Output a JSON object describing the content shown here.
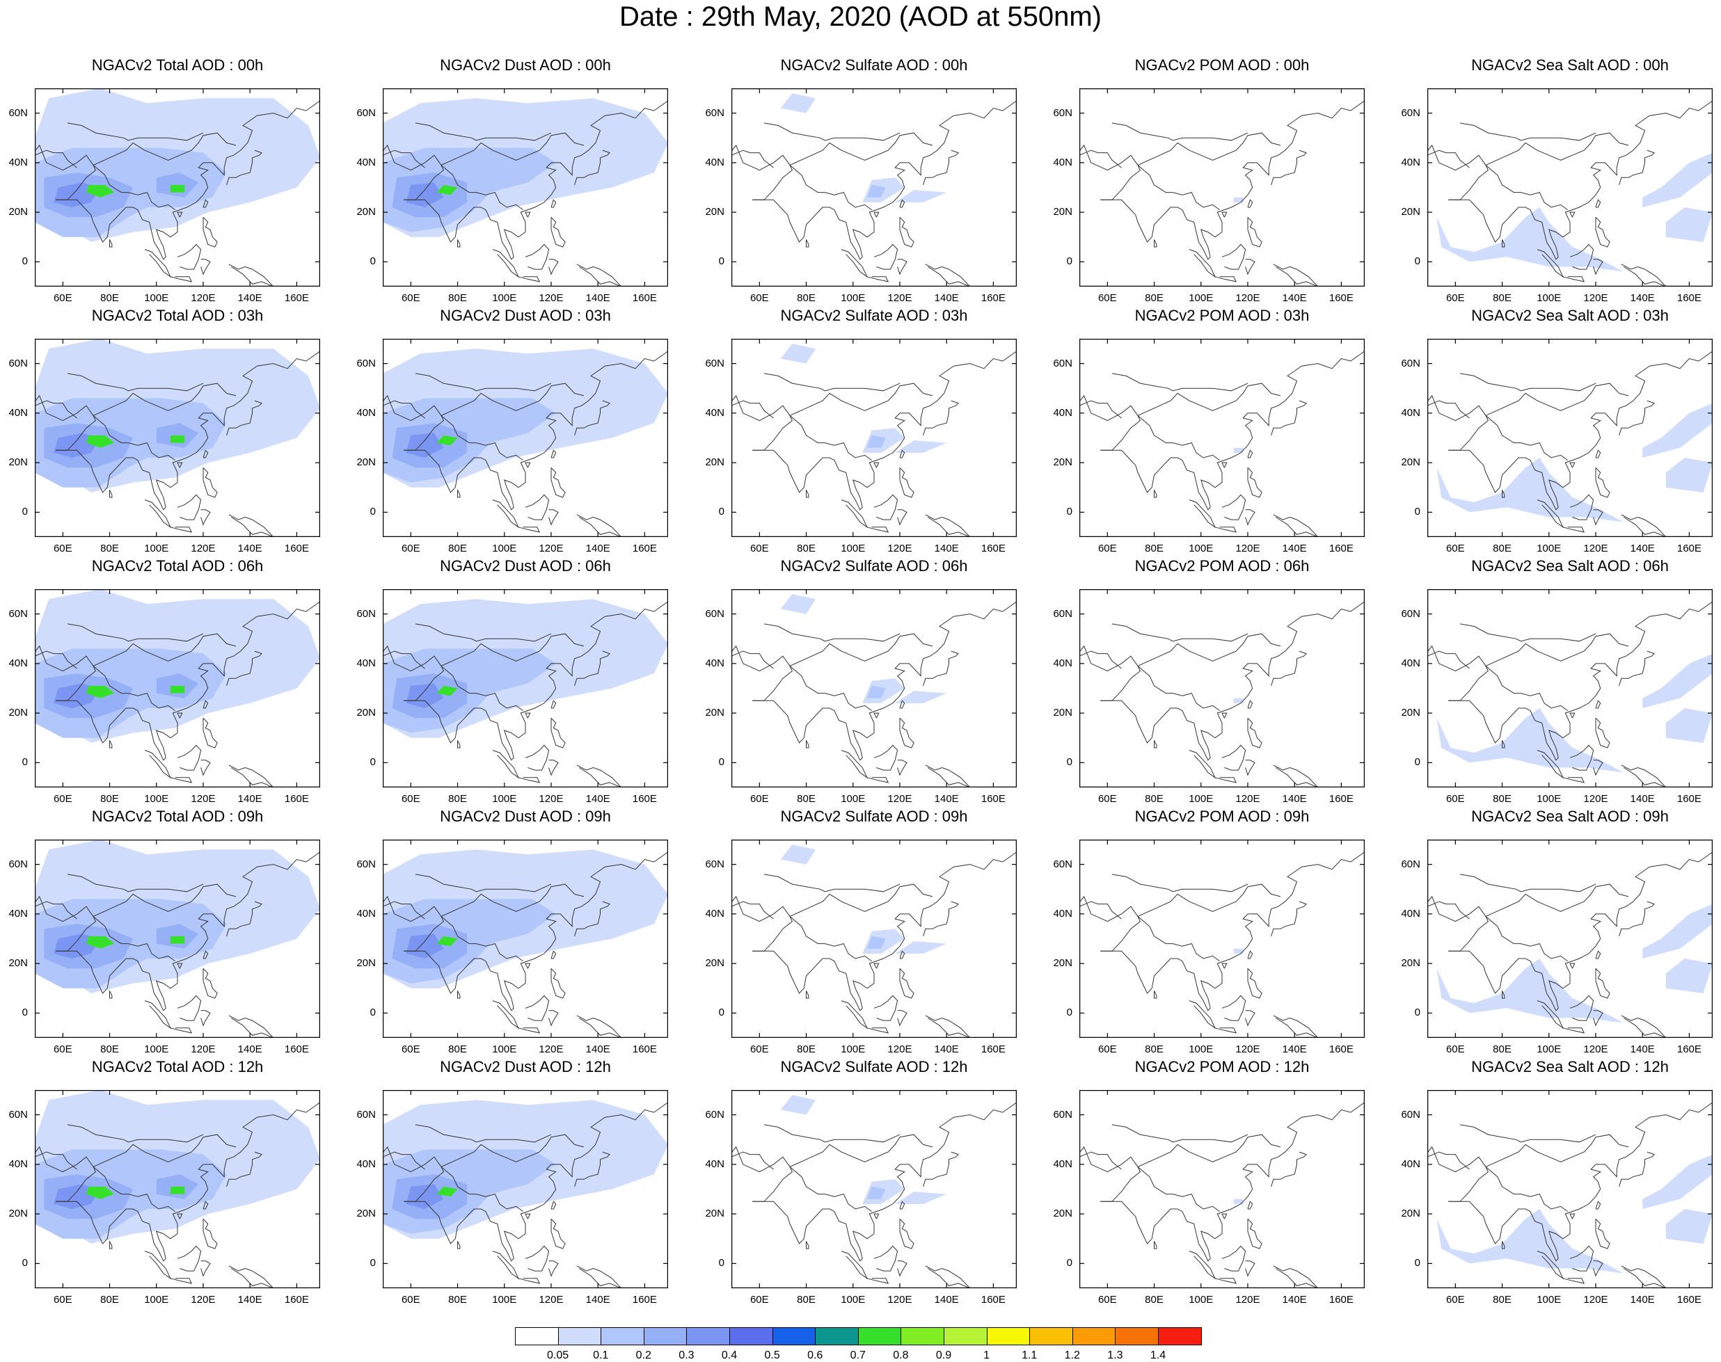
{
  "title": "Date : 29th May, 2020 (AOD at 550nm)",
  "lat_ticks": [
    "60N",
    "40N",
    "20N",
    "0"
  ],
  "lat_values": [
    60,
    40,
    20,
    0
  ],
  "lon_ticks": [
    "60E",
    "80E",
    "100E",
    "120E",
    "140E",
    "160E"
  ],
  "lon_values": [
    60,
    80,
    100,
    120,
    140,
    160
  ],
  "map_extent": {
    "lon": [
      48,
      170
    ],
    "lat": [
      -10,
      70
    ]
  },
  "rows": [
    {
      "panels": [
        {
          "title": "NGACv2 Total AOD : 00h",
          "variable": "total"
        },
        {
          "title": "NGACv2 Dust AOD : 00h",
          "variable": "dust"
        },
        {
          "title": "NGACv2 Sulfate AOD : 00h",
          "variable": "sulfate"
        },
        {
          "title": "NGACv2 POM AOD : 00h",
          "variable": "pom"
        },
        {
          "title": "NGACv2 Sea Salt AOD : 00h",
          "variable": "seasalt"
        }
      ]
    },
    {
      "panels": [
        {
          "title": "NGACv2 Total AOD : 03h",
          "variable": "total"
        },
        {
          "title": "NGACv2 Dust AOD : 03h",
          "variable": "dust"
        },
        {
          "title": "NGACv2 Sulfate AOD : 03h",
          "variable": "sulfate"
        },
        {
          "title": "NGACv2 POM AOD : 03h",
          "variable": "pom"
        },
        {
          "title": "NGACv2 Sea Salt AOD : 03h",
          "variable": "seasalt"
        }
      ]
    },
    {
      "panels": [
        {
          "title": "NGACv2 Total AOD : 06h",
          "variable": "total"
        },
        {
          "title": "NGACv2 Dust AOD : 06h",
          "variable": "dust"
        },
        {
          "title": "NGACv2 Sulfate AOD : 06h",
          "variable": "sulfate"
        },
        {
          "title": "NGACv2 POM AOD : 06h",
          "variable": "pom"
        },
        {
          "title": "NGACv2 Sea Salt AOD : 06h",
          "variable": "seasalt"
        }
      ]
    },
    {
      "panels": [
        {
          "title": "NGACv2 Total AOD : 09h",
          "variable": "total"
        },
        {
          "title": "NGACv2 Dust AOD : 09h",
          "variable": "dust"
        },
        {
          "title": "NGACv2 Sulfate AOD : 09h",
          "variable": "sulfate"
        },
        {
          "title": "NGACv2 POM AOD : 09h",
          "variable": "pom"
        },
        {
          "title": "NGACv2 Sea Salt  AOD : 09h",
          "variable": "seasalt"
        }
      ]
    },
    {
      "panels": [
        {
          "title": "NGACv2 Total AOD  : 12h",
          "variable": "total"
        },
        {
          "title": "NGACv2 Dust AOD : 12h",
          "variable": "dust"
        },
        {
          "title": "NGACv2 Sulfate AOD : 12h",
          "variable": "sulfate"
        },
        {
          "title": "NGACv2 POM  AOD : 12h",
          "variable": "pom"
        },
        {
          "title": "NGACv2 Sea Salt  AOD : 12h",
          "variable": "seasalt"
        }
      ]
    }
  ],
  "colorbar": {
    "colors": [
      "#ffffff",
      "#cfdcfb",
      "#b1c6fa",
      "#95b0f7",
      "#7b95f3",
      "#5b6fee",
      "#1561ea",
      "#0b978f",
      "#36e02a",
      "#80ee22",
      "#b6f236",
      "#f7f700",
      "#fbbf04",
      "#fb9c06",
      "#f77207",
      "#f71e0f"
    ],
    "labels": [
      "0.05",
      "0.1",
      "0.2",
      "0.3",
      "0.4",
      "0.5",
      "0.6",
      "0.7",
      "0.8",
      "0.9",
      "1",
      "1.1",
      "1.2",
      "1.3",
      "1.4"
    ]
  }
}
